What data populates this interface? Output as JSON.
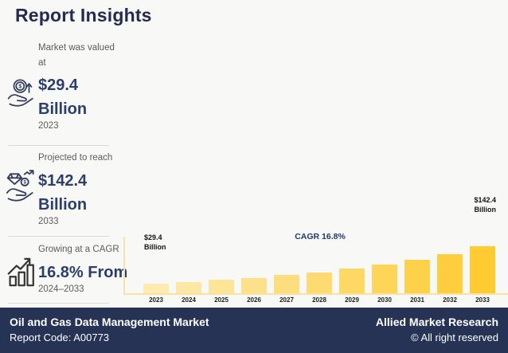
{
  "header": {
    "title": "Report Insights"
  },
  "stats": [
    {
      "icon": "hand-coin-growth-icon",
      "label": "Market was valued at",
      "value_line1": "$29.4",
      "value_line2": "Billion",
      "period": "2023"
    },
    {
      "icon": "hand-diamond-icon",
      "label": "Projected to reach",
      "value_line1": "$142.4",
      "value_line2": "Billion",
      "period": "2033"
    },
    {
      "icon": "bar-chart-growth-icon",
      "label": "Growing at a CAGR",
      "value_line1": "16.8% From",
      "value_line2": "",
      "period": "2024–2033"
    }
  ],
  "chart_data": {
    "type": "bar",
    "title": "",
    "xlabel": "",
    "ylabel": "",
    "categories": [
      "2023",
      "2024",
      "2025",
      "2026",
      "2027",
      "2028",
      "2029",
      "2030",
      "2031",
      "2032",
      "2033"
    ],
    "values": [
      29.4,
      34.3,
      40.1,
      46.8,
      54.7,
      63.8,
      74.5,
      87.1,
      101.7,
      118.8,
      142.4
    ],
    "ylim": [
      0,
      142.4
    ],
    "grid": false,
    "legend": "none",
    "bar_colors": [
      "#FDEBB0",
      "#FDE8A3",
      "#FDE597",
      "#FDE18A",
      "#FDDE7E",
      "#FEDB71",
      "#FED864",
      "#FED558",
      "#FED14B",
      "#FECE3F",
      "#FECB32"
    ],
    "annotations": {
      "start_value": "$29.4",
      "start_unit": "Billion",
      "cagr": "CAGR 16.8%",
      "end_value": "$142.4",
      "end_unit": "Billion"
    }
  },
  "footer": {
    "market": "Oil and Gas Data Management Market",
    "report_code": "Report Code: A00773",
    "brand": "Allied Market Research",
    "rights": "© All right reserved"
  },
  "colors": {
    "background": "#F8F8F7",
    "title_navy": "#232C4E",
    "value_navy": "#2C3F6B",
    "text_gray": "#5B5C5F",
    "footer_bg": "#263355",
    "axis_gold": "#F6E2A6",
    "cagr_navy": "#21396B"
  }
}
